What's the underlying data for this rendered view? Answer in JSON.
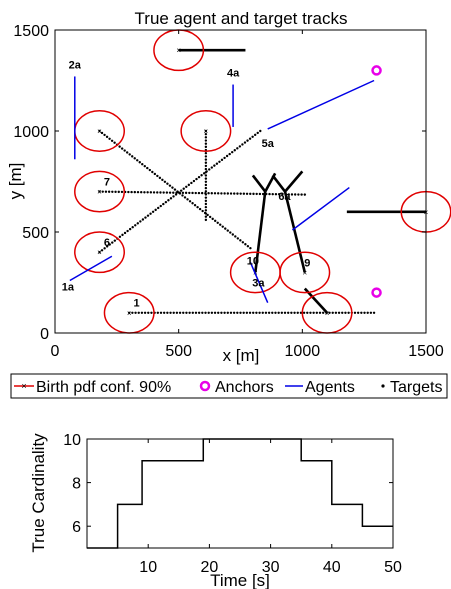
{
  "chart_data": [
    {
      "type": "scatter",
      "title": "True agent and target tracks",
      "xlabel": "x [m]",
      "ylabel": "y [m]",
      "xlim": [
        0,
        1500
      ],
      "ylim": [
        0,
        1500
      ],
      "xticks": [
        "0",
        "500",
        "1000",
        "1500"
      ],
      "yticks": [
        "0",
        "500",
        "1000",
        "1500"
      ],
      "grid": false,
      "legend_position": "bottom-outside",
      "legend": [
        {
          "label": "Birth pdf conf. 90%",
          "color": "#e00000",
          "marker": "x-line"
        },
        {
          "label": "Anchors",
          "color": "#e800e8",
          "marker": "o"
        },
        {
          "label": "Agents",
          "color": "#0000e6",
          "marker": "line"
        },
        {
          "label": "Targets",
          "color": "#000000",
          "marker": "dot"
        }
      ],
      "birth_regions": [
        {
          "x": 300,
          "y": 100,
          "r": 100
        },
        {
          "x": 180,
          "y": 400,
          "r": 100
        },
        {
          "x": 180,
          "y": 700,
          "r": 100
        },
        {
          "x": 180,
          "y": 1000,
          "r": 100
        },
        {
          "x": 500,
          "y": 1400,
          "r": 100
        },
        {
          "x": 610,
          "y": 1000,
          "r": 100
        },
        {
          "x": 810,
          "y": 300,
          "r": 100
        },
        {
          "x": 1010,
          "y": 300,
          "r": 100
        },
        {
          "x": 1100,
          "y": 100,
          "r": 100
        },
        {
          "x": 1500,
          "y": 600,
          "r": 100
        }
      ],
      "anchors": [
        {
          "x": 1300,
          "y": 1300
        },
        {
          "x": 1300,
          "y": 200
        }
      ],
      "agents": [
        {
          "label": "1a",
          "x1": 60,
          "y1": 260,
          "x2": 230,
          "y2": 380
        },
        {
          "label": "2a",
          "x1": 80,
          "y1": 1270,
          "x2": 80,
          "y2": 860
        },
        {
          "label": "3a",
          "x1": 790,
          "y1": 350,
          "x2": 860,
          "y2": 150
        },
        {
          "label": "4a",
          "x1": 720,
          "y1": 1230,
          "x2": 720,
          "y2": 1020
        },
        {
          "label": "5a",
          "x1": 860,
          "y1": 1010,
          "x2": 1290,
          "y2": 1250
        },
        {
          "label": "6a",
          "x1": 960,
          "y1": 510,
          "x2": 1190,
          "y2": 720
        }
      ],
      "target_labels": [
        {
          "label": "1",
          "x": 330,
          "y": 130
        },
        {
          "label": "6",
          "x": 210,
          "y": 430
        },
        {
          "label": "7",
          "x": 210,
          "y": 730
        },
        {
          "label": "10",
          "x": 800,
          "y": 340
        },
        {
          "label": "9",
          "x": 1020,
          "y": 330
        }
      ],
      "target_tracks": [
        {
          "x1": 300,
          "y1": 100,
          "x2": 1290,
          "y2": 100,
          "style": "dotted"
        },
        {
          "x1": 180,
          "y1": 400,
          "x2": 830,
          "y2": 1000,
          "style": "dotted"
        },
        {
          "x1": 180,
          "y1": 700,
          "x2": 1010,
          "y2": 685,
          "style": "dotted"
        },
        {
          "x1": 180,
          "y1": 1000,
          "x2": 790,
          "y2": 420,
          "style": "dotted"
        },
        {
          "x1": 610,
          "y1": 1000,
          "x2": 610,
          "y2": 560,
          "style": "dotted"
        },
        {
          "x1": 500,
          "y1": 1400,
          "x2": 770,
          "y2": 1400,
          "style": "solid"
        },
        {
          "x1": 1500,
          "y1": 600,
          "x2": 1180,
          "y2": 600,
          "style": "solid"
        },
        {
          "x1": 810,
          "y1": 300,
          "x2": 850,
          "y2": 700,
          "style": "solid"
        },
        {
          "x1": 850,
          "y1": 700,
          "x2": 890,
          "y2": 790,
          "style": "solid"
        },
        {
          "x1": 850,
          "y1": 700,
          "x2": 800,
          "y2": 780,
          "style": "solid"
        },
        {
          "x1": 1010,
          "y1": 300,
          "x2": 930,
          "y2": 700,
          "style": "solid"
        },
        {
          "x1": 930,
          "y1": 700,
          "x2": 1000,
          "y2": 800,
          "style": "solid"
        },
        {
          "x1": 930,
          "y1": 700,
          "x2": 880,
          "y2": 780,
          "style": "solid"
        },
        {
          "x1": 1100,
          "y1": 100,
          "x2": 1010,
          "y2": 220,
          "style": "solid"
        }
      ]
    },
    {
      "type": "line",
      "xlabel": "Time [s]",
      "ylabel": "True Cardinality",
      "xlim": [
        0,
        50
      ],
      "ylim": [
        5,
        10
      ],
      "xticks": [
        "10",
        "20",
        "30",
        "40",
        "50"
      ],
      "yticks": [
        "6",
        "8",
        "10"
      ],
      "grid": false,
      "series": [
        {
          "step": true,
          "color": "#000000",
          "x": [
            0,
            5,
            9,
            19,
            35,
            40,
            45,
            50
          ],
          "y": [
            5,
            7,
            9,
            10,
            9,
            7,
            6,
            6
          ]
        }
      ]
    }
  ]
}
